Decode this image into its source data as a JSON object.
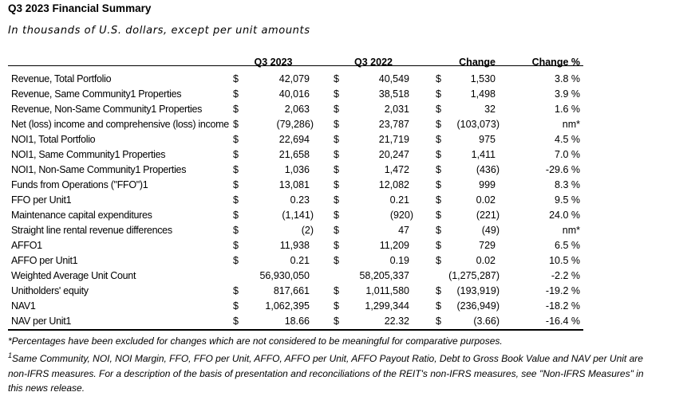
{
  "title": "Q3 2023 Financial Summary",
  "subtitle": "In thousands of U.S. dollars, except per unit amounts",
  "table": {
    "columns": [
      "",
      "Q3 2023",
      "Q3 2022",
      "Change",
      "Change %"
    ],
    "rows": [
      {
        "label": "Revenue, Total Portfolio",
        "dollar": "$",
        "q3_2023": "42,079",
        "q3_2022": "40,549",
        "change": "1,530",
        "change_pct": "3.8 %"
      },
      {
        "label": "Revenue, Same Community1 Properties",
        "dollar": "$",
        "q3_2023": "40,016",
        "q3_2022": "38,518",
        "change": "1,498",
        "change_pct": "3.9 %"
      },
      {
        "label": "Revenue, Non-Same Community1 Properties",
        "dollar": "$",
        "q3_2023": "2,063",
        "q3_2022": "2,031",
        "change": "32",
        "change_pct": "1.6 %"
      },
      {
        "label": "Net (loss) income and comprehensive (loss) income",
        "dollar": "$",
        "q3_2023": "(79,286)",
        "q3_2022": "23,787",
        "change": "(103,073)",
        "change_pct": "nm*"
      },
      {
        "label": "NOI1, Total Portfolio",
        "dollar": "$",
        "q3_2023": "22,694",
        "q3_2022": "21,719",
        "change": "975",
        "change_pct": "4.5 %"
      },
      {
        "label": "NOI1, Same Community1 Properties",
        "dollar": "$",
        "q3_2023": "21,658",
        "q3_2022": "20,247",
        "change": "1,411",
        "change_pct": "7.0 %"
      },
      {
        "label": "NOI1, Non-Same Community1 Properties",
        "dollar": "$",
        "q3_2023": "1,036",
        "q3_2022": "1,472",
        "change": "(436)",
        "change_pct": "-29.6 %"
      },
      {
        "label": "Funds from Operations (\"FFO\")1",
        "dollar": "$",
        "q3_2023": "13,081",
        "q3_2022": "12,082",
        "change": "999",
        "change_pct": "8.3 %"
      },
      {
        "label": "FFO per Unit1",
        "dollar": "$",
        "q3_2023": "0.23",
        "q3_2022": "0.21",
        "change": "0.02",
        "change_pct": "9.5 %"
      },
      {
        "label": "Maintenance capital expenditures",
        "dollar": "$",
        "q3_2023": "(1,141)",
        "q3_2022": "(920)",
        "change": "(221)",
        "change_pct": "24.0 %"
      },
      {
        "label": "Straight line rental revenue differences",
        "dollar": "$",
        "q3_2023": "(2)",
        "q3_2022": "47",
        "change": "(49)",
        "change_pct": "nm*"
      },
      {
        "label": "AFFO1",
        "dollar": "$",
        "q3_2023": "11,938",
        "q3_2022": "11,209",
        "change": "729",
        "change_pct": "6.5 %"
      },
      {
        "label": "AFFO per Unit1",
        "dollar": "$",
        "q3_2023": "0.21",
        "q3_2022": "0.19",
        "change": "0.02",
        "change_pct": "10.5 %"
      },
      {
        "label": "Weighted Average Unit Count",
        "dollar": "",
        "q3_2023": "56,930,050",
        "q3_2022": "58,205,337",
        "change": "(1,275,287)",
        "change_pct": "-2.2 %"
      },
      {
        "label": "Unitholders' equity",
        "dollar": "$",
        "q3_2023": "817,661",
        "q3_2022": "1,011,580",
        "change": "(193,919)",
        "change_pct": "-19.2 %"
      },
      {
        "label": "NAV1",
        "dollar": "$",
        "q3_2023": "1,062,395",
        "q3_2022": "1,299,344",
        "change": "(236,949)",
        "change_pct": "-18.2 %"
      },
      {
        "label": "NAV per Unit1",
        "dollar": "$",
        "q3_2023": "18.66",
        "q3_2022": "22.32",
        "change": "(3.66)",
        "change_pct": "-16.4 %"
      }
    ]
  },
  "footnotes": [
    {
      "marker": "*",
      "superscript": false,
      "lines": [
        "Percentages have been excluded for changes which are not considered to be meaningful for comparative purposes."
      ]
    },
    {
      "marker": "1",
      "superscript": true,
      "lines": [
        "Same Community, NOI, NOI Margin, FFO, FFO per Unit, AFFO, AFFO per Unit, AFFO Payout Ratio, Debt to Gross Book Value and NAV per Unit are",
        "non-IFRS measures. For a description of the basis of presentation and reconciliations of the REIT's non-IFRS measures, see \"Non-IFRS Measures\" in",
        "this news release."
      ]
    }
  ]
}
